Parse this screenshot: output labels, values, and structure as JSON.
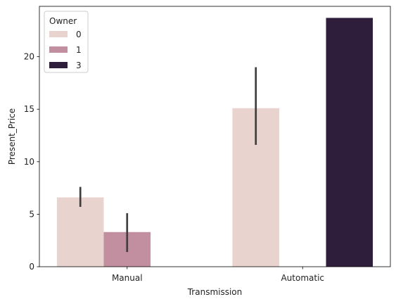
{
  "chart_data": {
    "type": "bar",
    "title": "",
    "xlabel": "Transmission",
    "ylabel": "Present_Price",
    "categories": [
      "Manual",
      "Automatic"
    ],
    "ylim": [
      0,
      24.8
    ],
    "yticks": [
      0,
      5,
      10,
      15,
      20
    ],
    "yticks_labels": [
      "0",
      "5",
      "10",
      "15",
      "20"
    ],
    "grid": false,
    "legend": {
      "title": "Owner",
      "placement": "top-left"
    },
    "series": [
      {
        "name": "0",
        "color": "#e8d3cf",
        "values": [
          6.6,
          15.1
        ],
        "ci_low": [
          5.7,
          11.6
        ],
        "ci_high": [
          7.6,
          19.0
        ]
      },
      {
        "name": "1",
        "color": "#c28fa0",
        "values": [
          3.3,
          null
        ],
        "ci_low": [
          1.4,
          null
        ],
        "ci_high": [
          5.1,
          null
        ]
      },
      {
        "name": "3",
        "color": "#2e1e3b",
        "values": [
          null,
          23.7
        ],
        "ci_low": [
          null,
          null
        ],
        "ci_high": [
          null,
          null
        ]
      }
    ],
    "errorbar_color": "#3f3f3f"
  }
}
